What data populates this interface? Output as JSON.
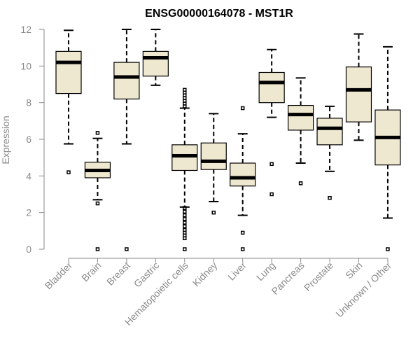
{
  "chart_data": {
    "type": "boxplot",
    "title": "ENSG00000164078 - MST1R",
    "xlabel": "",
    "ylabel": "Expression",
    "ylim": [
      0,
      12
    ],
    "yticks": [
      0,
      2,
      4,
      6,
      8,
      10,
      12
    ],
    "categories": [
      "Bladder",
      "Brain",
      "Breast",
      "Gastric",
      "Hematopoietic cells",
      "Kidney",
      "Liver",
      "Lung",
      "Pancreas",
      "Prostate",
      "Skin",
      "Unknown / Other"
    ],
    "box_color": "#efe8d0",
    "series": [
      {
        "name": "Bladder",
        "whisker_low": 5.75,
        "q1": 8.5,
        "median": 10.2,
        "q3": 10.8,
        "whisker_high": 11.95,
        "outliers": [
          4.2
        ]
      },
      {
        "name": "Brain",
        "whisker_low": 2.7,
        "q1": 3.9,
        "median": 4.3,
        "q3": 4.75,
        "whisker_high": 6.05,
        "outliers": [
          6.35,
          2.5,
          0.0
        ]
      },
      {
        "name": "Breast",
        "whisker_low": 5.75,
        "q1": 8.2,
        "median": 9.4,
        "q3": 10.2,
        "whisker_high": 12.0,
        "outliers": [
          0.0
        ]
      },
      {
        "name": "Gastric",
        "whisker_low": 8.95,
        "q1": 9.45,
        "median": 10.45,
        "q3": 10.8,
        "whisker_high": 12.0,
        "outliers": []
      },
      {
        "name": "Hematopoietic cells",
        "whisker_low": 2.3,
        "q1": 4.3,
        "median": 5.1,
        "q3": 5.7,
        "whisker_high": 7.7,
        "outliers": [
          8.7,
          8.55,
          8.4,
          8.25,
          8.1,
          7.95,
          7.8,
          2.25,
          2.05,
          1.85,
          1.65,
          1.45,
          1.25,
          1.05,
          0.9,
          0.75,
          0.6,
          0.0
        ]
      },
      {
        "name": "Kidney",
        "whisker_low": 2.6,
        "q1": 4.35,
        "median": 4.8,
        "q3": 5.8,
        "whisker_high": 7.4,
        "outliers": [
          2.0
        ]
      },
      {
        "name": "Liver",
        "whisker_low": 1.85,
        "q1": 3.45,
        "median": 3.9,
        "q3": 4.7,
        "whisker_high": 6.3,
        "outliers": [
          7.7,
          0.9,
          0.0
        ]
      },
      {
        "name": "Lung",
        "whisker_low": 7.2,
        "q1": 8.0,
        "median": 9.1,
        "q3": 9.65,
        "whisker_high": 10.9,
        "outliers": [
          4.65,
          3.0
        ]
      },
      {
        "name": "Pancreas",
        "whisker_low": 4.7,
        "q1": 6.5,
        "median": 7.35,
        "q3": 7.85,
        "whisker_high": 9.35,
        "outliers": [
          3.6
        ]
      },
      {
        "name": "Prostate",
        "whisker_low": 4.25,
        "q1": 5.7,
        "median": 6.6,
        "q3": 7.15,
        "whisker_high": 7.8,
        "outliers": [
          2.8
        ]
      },
      {
        "name": "Skin",
        "whisker_low": 5.95,
        "q1": 6.95,
        "median": 8.7,
        "q3": 9.95,
        "whisker_high": 11.75,
        "outliers": []
      },
      {
        "name": "Unknown / Other",
        "whisker_low": 1.7,
        "q1": 4.6,
        "median": 6.1,
        "q3": 7.6,
        "whisker_high": 11.05,
        "outliers": [
          0.0
        ]
      }
    ]
  }
}
